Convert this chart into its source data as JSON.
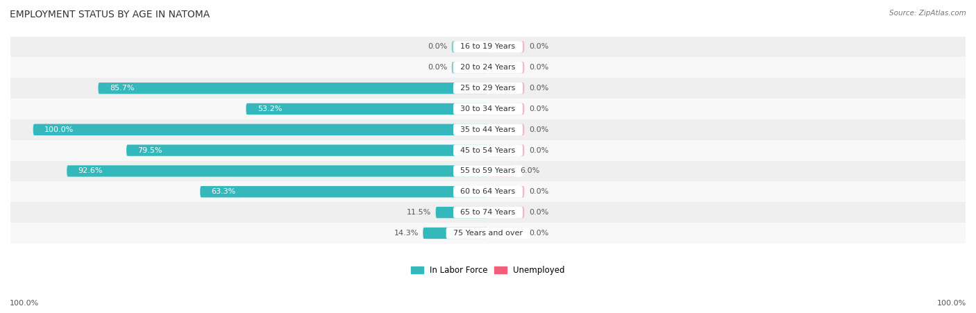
{
  "title": "EMPLOYMENT STATUS BY AGE IN NATOMA",
  "source": "Source: ZipAtlas.com",
  "categories": [
    "16 to 19 Years",
    "20 to 24 Years",
    "25 to 29 Years",
    "30 to 34 Years",
    "35 to 44 Years",
    "45 to 54 Years",
    "55 to 59 Years",
    "60 to 64 Years",
    "65 to 74 Years",
    "75 Years and over"
  ],
  "labor_force": [
    0.0,
    0.0,
    85.7,
    53.2,
    100.0,
    79.5,
    92.6,
    63.3,
    11.5,
    14.3
  ],
  "unemployed": [
    0.0,
    0.0,
    0.0,
    0.0,
    0.0,
    0.0,
    6.0,
    0.0,
    0.0,
    0.0
  ],
  "labor_force_color": "#35b8bc",
  "labor_force_light_color": "#87cfd1",
  "unemployed_color": "#f0607a",
  "unemployed_light_color": "#f5b8c8",
  "row_colors": [
    "#efefef",
    "#f8f8f8"
  ],
  "max_val": 100.0,
  "left_label": "100.0%",
  "right_label": "100.0%",
  "legend_labor": "In Labor Force",
  "legend_unemployed": "Unemployed",
  "title_fontsize": 10,
  "label_fontsize": 8,
  "category_fontsize": 8,
  "source_fontsize": 7.5,
  "stub_val": 8.0
}
